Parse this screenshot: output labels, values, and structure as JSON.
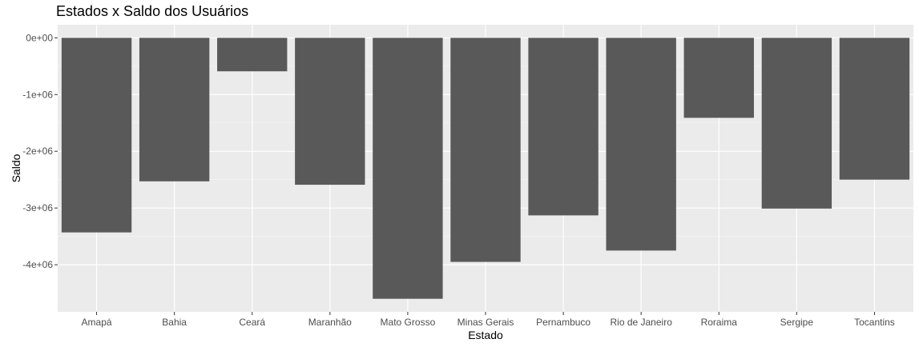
{
  "chart_data": {
    "type": "bar",
    "title": "Estados x Saldo dos Usuários",
    "xlabel": "Estado",
    "ylabel": "Saldo",
    "categories": [
      "Amapá",
      "Bahia",
      "Ceará",
      "Maranhão",
      "Mato Grosso",
      "Minas Gerais",
      "Pernambuco",
      "Rio de Janeiro",
      "Roraima",
      "Sergipe",
      "Tocantins"
    ],
    "values": [
      -3430000,
      -2530000,
      -590000,
      -2590000,
      -4600000,
      -3950000,
      -3130000,
      -3750000,
      -1410000,
      -3010000,
      -2500000
    ],
    "y_ticks": [
      {
        "value": 0,
        "label": "0e+00"
      },
      {
        "value": -1000000,
        "label": "-1e+06"
      },
      {
        "value": -2000000,
        "label": "-2e+06"
      },
      {
        "value": -3000000,
        "label": "-3e+06"
      },
      {
        "value": -4000000,
        "label": "-4e+06"
      }
    ],
    "ylim": [
      -4830000,
      230000
    ],
    "grid": true,
    "legend": "none",
    "colors": {
      "bar": "#595959",
      "panel": "#ebebeb",
      "grid_major": "#ffffff",
      "grid_minor": "#f5f5f5",
      "tick_text": "#4d4d4d"
    }
  }
}
